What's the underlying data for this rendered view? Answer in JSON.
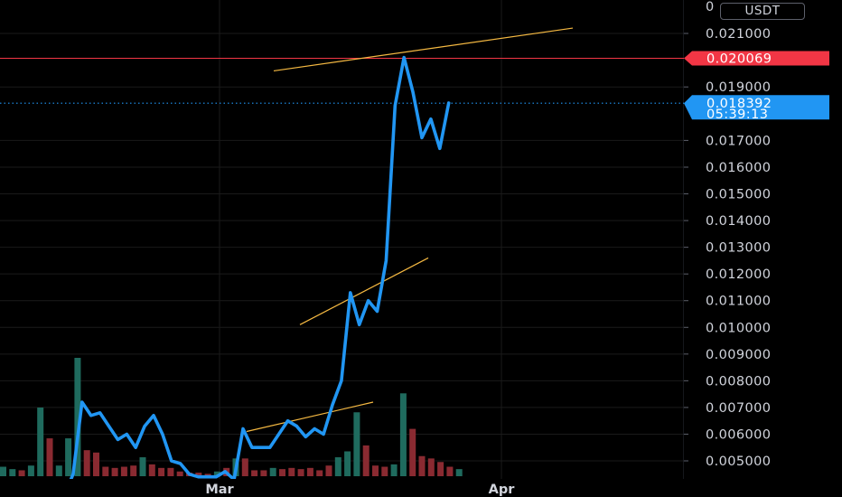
{
  "chart_data": {
    "type": "line",
    "price_axis": {
      "ticks": [
        "0.021000",
        "0.019000",
        "0.017000",
        "0.016000",
        "0.015000",
        "0.014000",
        "0.013000",
        "0.012000",
        "0.011000",
        "0.010000",
        "0.009000",
        "0.008000",
        "0.007000",
        "0.006000",
        "0.005000"
      ],
      "ylim": [
        0.0045,
        0.0222
      ]
    },
    "time_axis": {
      "labels": [
        "Mar",
        "Apr"
      ]
    },
    "currency_label": "USDT",
    "price_series": [
      0.0037,
      0.0045,
      0.0072,
      0.0067,
      0.0068,
      0.0063,
      0.0058,
      0.006,
      0.0055,
      0.0063,
      0.0067,
      0.006,
      0.005,
      0.0049,
      0.0045,
      0.0044,
      0.0044,
      0.0044,
      0.0046,
      0.0043,
      0.0062,
      0.0055,
      0.0055,
      0.0055,
      0.006,
      0.0065,
      0.0063,
      0.0059,
      0.0062,
      0.006,
      0.0071,
      0.008,
      0.0113,
      0.0101,
      0.011,
      0.0106,
      0.0125,
      0.0183,
      0.0201,
      0.0188,
      0.0171,
      0.0178,
      0.0167,
      0.0184
    ],
    "volume_bars": [
      {
        "v": 0.08,
        "dir": "up"
      },
      {
        "v": 0.06,
        "dir": "up"
      },
      {
        "v": 0.05,
        "dir": "down"
      },
      {
        "v": 0.09,
        "dir": "up"
      },
      {
        "v": 0.58,
        "dir": "up"
      },
      {
        "v": 0.32,
        "dir": "down"
      },
      {
        "v": 0.09,
        "dir": "up"
      },
      {
        "v": 0.32,
        "dir": "up"
      },
      {
        "v": 1.0,
        "dir": "up"
      },
      {
        "v": 0.22,
        "dir": "down"
      },
      {
        "v": 0.2,
        "dir": "down"
      },
      {
        "v": 0.08,
        "dir": "down"
      },
      {
        "v": 0.07,
        "dir": "down"
      },
      {
        "v": 0.08,
        "dir": "down"
      },
      {
        "v": 0.09,
        "dir": "down"
      },
      {
        "v": 0.16,
        "dir": "up"
      },
      {
        "v": 0.1,
        "dir": "down"
      },
      {
        "v": 0.07,
        "dir": "down"
      },
      {
        "v": 0.07,
        "dir": "down"
      },
      {
        "v": 0.04,
        "dir": "down"
      },
      {
        "v": 0.03,
        "dir": "down"
      },
      {
        "v": 0.03,
        "dir": "down"
      },
      {
        "v": 0.02,
        "dir": "down"
      },
      {
        "v": 0.04,
        "dir": "up"
      },
      {
        "v": 0.07,
        "dir": "down"
      },
      {
        "v": 0.15,
        "dir": "up"
      },
      {
        "v": 0.15,
        "dir": "down"
      },
      {
        "v": 0.05,
        "dir": "down"
      },
      {
        "v": 0.05,
        "dir": "down"
      },
      {
        "v": 0.07,
        "dir": "up"
      },
      {
        "v": 0.06,
        "dir": "down"
      },
      {
        "v": 0.07,
        "dir": "down"
      },
      {
        "v": 0.06,
        "dir": "down"
      },
      {
        "v": 0.07,
        "dir": "down"
      },
      {
        "v": 0.05,
        "dir": "down"
      },
      {
        "v": 0.09,
        "dir": "down"
      },
      {
        "v": 0.16,
        "dir": "up"
      },
      {
        "v": 0.21,
        "dir": "up"
      },
      {
        "v": 0.54,
        "dir": "up"
      },
      {
        "v": 0.26,
        "dir": "down"
      },
      {
        "v": 0.09,
        "dir": "down"
      },
      {
        "v": 0.08,
        "dir": "down"
      },
      {
        "v": 0.1,
        "dir": "up"
      },
      {
        "v": 0.7,
        "dir": "up"
      },
      {
        "v": 0.4,
        "dir": "down"
      },
      {
        "v": 0.17,
        "dir": "down"
      },
      {
        "v": 0.15,
        "dir": "down"
      },
      {
        "v": 0.12,
        "dir": "down"
      },
      {
        "v": 0.08,
        "dir": "down"
      },
      {
        "v": 0.06,
        "dir": "up"
      }
    ],
    "trendlines": [
      {
        "x1": 0.0201,
        "y1": 0.0196,
        "x2": 0.0213,
        "y2": 0.0212
      },
      {
        "x1": 0.0101,
        "y1": 0.0101,
        "x2": 0.0126,
        "y2": 0.0126
      },
      {
        "x1": 0.0061,
        "y1": 0.0061,
        "x2": 0.0072,
        "y2": 0.0072
      }
    ],
    "resistance_level": 0.020069,
    "last_price": 0.018392,
    "tags": {
      "resistance": {
        "label": "0.020069",
        "color": "#f23645"
      },
      "last": {
        "label": "0.018392",
        "countdown": "05:39:13",
        "color": "#2196f3"
      }
    },
    "colors": {
      "line": "#2196f3",
      "volume_up": "#1f6b5e",
      "volume_down": "#8a2a31",
      "trendline": "#f5b942",
      "grid": "#1a1a1a"
    },
    "grid": true
  }
}
